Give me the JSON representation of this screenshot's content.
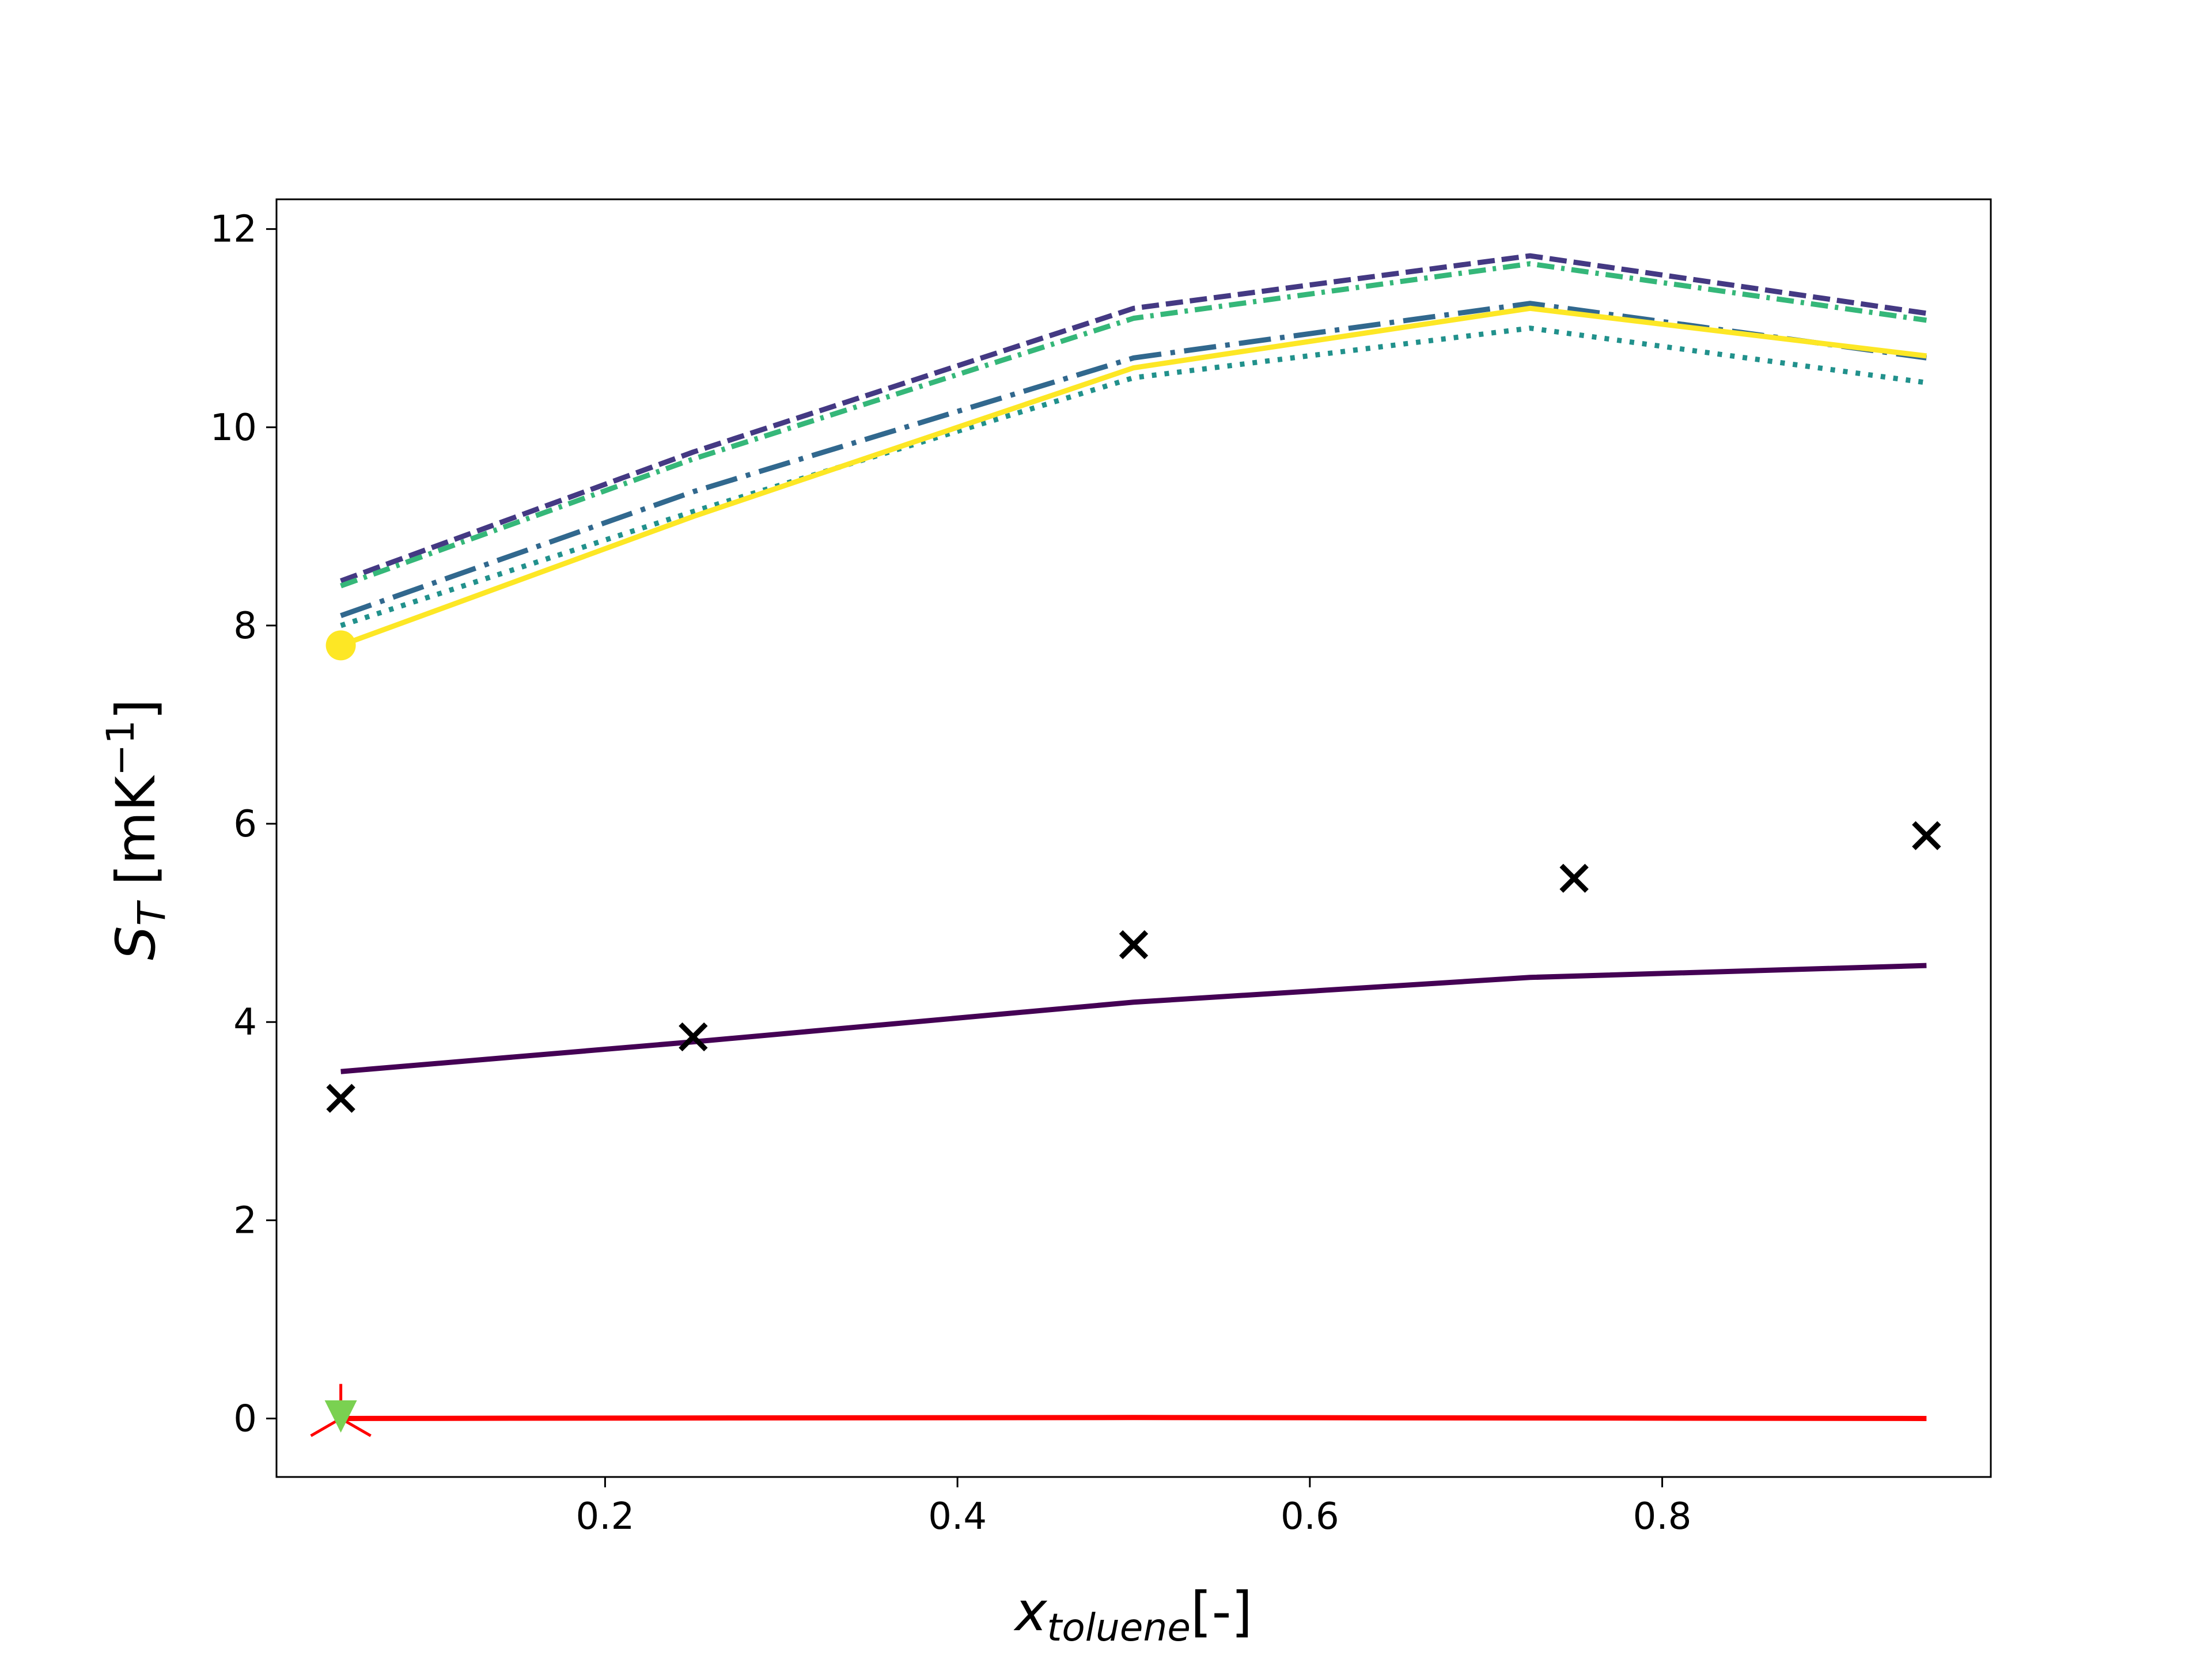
{
  "chart_data": {
    "type": "line",
    "title": "",
    "xlabel": {
      "base": "x",
      "sub": "toluene",
      "suffix": "[-]"
    },
    "ylabel": {
      "base": "S",
      "sub": "T",
      "unit_prefix": " [mK",
      "unit_sup": "−1",
      "unit_suffix": "]"
    },
    "xlim": [
      0.0135,
      0.9865
    ],
    "ylim": [
      -0.59,
      12.3
    ],
    "xticks": [
      0.2,
      0.4,
      0.6,
      0.8
    ],
    "xtick_labels": [
      "0.2",
      "0.4",
      "0.6",
      "0.8"
    ],
    "yticks": [
      0,
      2,
      4,
      6,
      8,
      10,
      12
    ],
    "ytick_labels": [
      "0",
      "2",
      "4",
      "6",
      "8",
      "10",
      "12"
    ],
    "grid": false,
    "legend": "none",
    "series": [
      {
        "style": "dashed",
        "color": "#443983",
        "x": [
          0.05,
          0.25,
          0.5,
          0.725,
          0.95
        ],
        "y": [
          8.45,
          9.75,
          11.2,
          11.73,
          11.15
        ]
      },
      {
        "style": "dashdot",
        "color": "#35b779",
        "x": [
          0.05,
          0.25,
          0.5,
          0.725,
          0.95
        ],
        "y": [
          8.4,
          9.68,
          11.1,
          11.65,
          11.08
        ]
      },
      {
        "style": "dashdot-long",
        "color": "#31688e",
        "x": [
          0.05,
          0.25,
          0.5,
          0.725,
          0.95
        ],
        "y": [
          8.1,
          9.35,
          10.7,
          11.25,
          10.7
        ]
      },
      {
        "style": "dotted",
        "color": "#21918c",
        "x": [
          0.05,
          0.25,
          0.5,
          0.725,
          0.95
        ],
        "y": [
          8.0,
          9.15,
          10.5,
          11.0,
          10.45
        ]
      },
      {
        "style": "solid",
        "color": "#fde725",
        "marker": "circle",
        "x": [
          0.05,
          0.25,
          0.5,
          0.725,
          0.95
        ],
        "y": [
          7.8,
          9.1,
          10.6,
          11.2,
          10.72
        ]
      },
      {
        "style": "solid",
        "color": "#440154",
        "x": [
          0.05,
          0.25,
          0.5,
          0.725,
          0.95
        ],
        "y": [
          3.5,
          3.8,
          4.2,
          4.45,
          4.57
        ]
      },
      {
        "style": "markers",
        "color": "#000000",
        "marker": "x",
        "x": [
          0.05,
          0.25,
          0.5,
          0.75,
          0.95
        ],
        "y": [
          3.23,
          3.85,
          4.78,
          5.45,
          5.88
        ]
      },
      {
        "style": "solid",
        "color": "#ff0000",
        "marker": "tri-down",
        "x": [
          0.05,
          0.25,
          0.5,
          0.725,
          0.95
        ],
        "y": [
          0.0,
          0.005,
          0.01,
          0.005,
          0.0
        ]
      },
      {
        "style": "markers",
        "color": "#7ad151",
        "marker": "triangle-down",
        "x": [
          0.05
        ],
        "y": [
          0.02
        ]
      }
    ]
  }
}
